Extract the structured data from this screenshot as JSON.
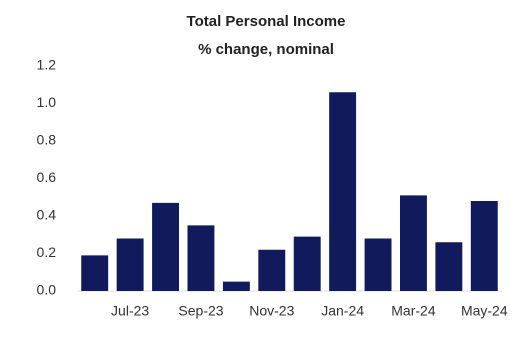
{
  "chart_data": {
    "type": "bar",
    "title": "Total Personal Income",
    "subtitle": "% change, nominal",
    "categories": [
      null,
      "Jul-23",
      null,
      "Sep-23",
      null,
      "Nov-23",
      null,
      "Jan-24",
      null,
      "Mar-24",
      null,
      "May-24"
    ],
    "values": [
      0.19,
      0.28,
      0.47,
      0.35,
      0.05,
      0.22,
      0.29,
      1.06,
      0.28,
      0.51,
      0.26,
      0.48
    ],
    "color": "#111a5c",
    "ylim": [
      0,
      1.2
    ],
    "yticks": [
      {
        "value": 0,
        "label": "0.0"
      },
      0.2,
      0.4,
      0.6,
      0.8,
      {
        "value": 1,
        "label": "1.0"
      },
      1.2
    ],
    "grid": false
  }
}
